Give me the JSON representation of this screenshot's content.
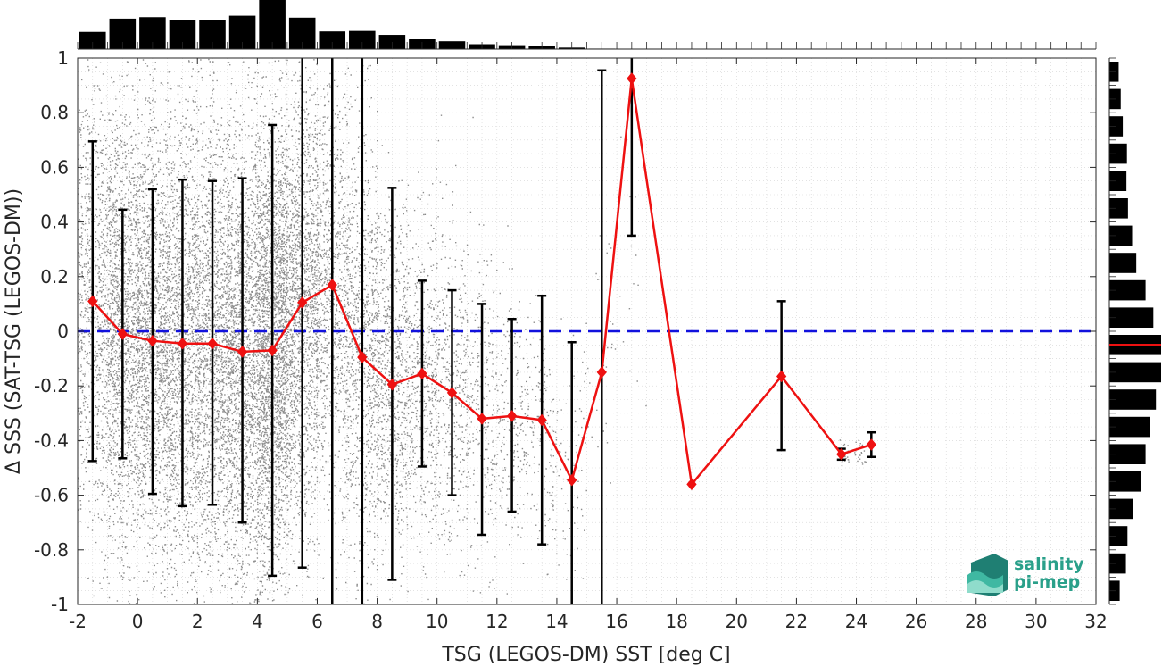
{
  "chart_data": {
    "type": "scatter",
    "xlabel": "TSG (LEGOS-DM) SST [deg C]",
    "ylabel": "Δ SSS (SAT-TSG (LEGOS-DM))",
    "xlim": [
      -2,
      32
    ],
    "ylim": [
      -1,
      1
    ],
    "xticks": [
      -2,
      0,
      2,
      4,
      6,
      8,
      10,
      12,
      14,
      16,
      18,
      20,
      22,
      24,
      26,
      28,
      30,
      32
    ],
    "xtick_labels": [
      "-2",
      "0",
      "2",
      "4",
      "6",
      "8",
      "10",
      "12",
      "14",
      "16",
      "18",
      "20",
      "22",
      "24",
      "26",
      "28",
      "30",
      "32"
    ],
    "yticks": [
      -1,
      -0.8,
      -0.6,
      -0.4,
      -0.2,
      0,
      0.2,
      0.4,
      0.6,
      0.8,
      1
    ],
    "ytick_labels": [
      "-1",
      "-0.8",
      "-0.6",
      "-0.4",
      "-0.2",
      "0",
      "0.2",
      "0.4",
      "0.6",
      "0.8",
      "1"
    ],
    "grid": "dotted",
    "reference_line": {
      "y": 0,
      "color": "#1111dd",
      "style": "dashed"
    },
    "scatter_color": "#8c8c8c",
    "mean_color": "#ee1111",
    "errorbar_color": "#000000",
    "binned_stats": {
      "x": [
        -1.5,
        -0.5,
        0.5,
        1.5,
        2.5,
        3.5,
        4.5,
        5.5,
        6.5,
        7.5,
        8.5,
        9.5,
        10.5,
        11.5,
        12.5,
        13.5,
        14.5,
        15.5,
        16.5,
        18.5,
        21.5,
        23.5,
        24.5
      ],
      "mean": [
        0.11,
        -0.01,
        -0.035,
        -0.045,
        -0.045,
        -0.075,
        -0.07,
        0.105,
        0.17,
        -0.095,
        -0.195,
        -0.155,
        -0.225,
        -0.32,
        -0.31,
        -0.325,
        -0.545,
        -0.15,
        0.925,
        -0.56,
        -0.165,
        -0.45,
        -0.415
      ],
      "lower": [
        -0.475,
        -0.465,
        -0.595,
        -0.64,
        -0.635,
        -0.7,
        -0.895,
        -0.865,
        -1.3,
        -1.3,
        -0.91,
        -0.495,
        -0.6,
        -0.745,
        -0.66,
        -0.78,
        -1.3,
        -1.3,
        0.35,
        null,
        -0.435,
        -0.47,
        -0.46
      ],
      "upper": [
        0.695,
        0.445,
        0.52,
        0.555,
        0.55,
        0.56,
        0.755,
        1.3,
        1.3,
        1.3,
        0.525,
        0.185,
        0.15,
        0.1,
        0.045,
        0.13,
        -0.04,
        0.955,
        1.3,
        null,
        0.11,
        -0.43,
        -0.37
      ]
    },
    "top_histogram": {
      "bin_width": 1,
      "x": [
        -1.5,
        -0.5,
        0.5,
        1.5,
        2.5,
        3.5,
        4.5,
        5.5,
        6.5,
        7.5,
        8.5,
        9.5,
        10.5,
        11.5,
        12.5,
        13.5,
        14.5,
        15.5,
        16.5
      ],
      "relative_counts": [
        0.35,
        0.62,
        0.65,
        0.6,
        0.6,
        0.68,
        1.0,
        0.64,
        0.36,
        0.37,
        0.29,
        0.2,
        0.16,
        0.1,
        0.08,
        0.06,
        0.03,
        0.01,
        0.005
      ]
    },
    "right_histogram": {
      "bin_width": 0.1,
      "y": [
        0.95,
        0.85,
        0.75,
        0.65,
        0.55,
        0.45,
        0.35,
        0.25,
        0.15,
        0.05,
        -0.05,
        -0.15,
        -0.25,
        -0.35,
        -0.45,
        -0.55,
        -0.65,
        -0.75,
        -0.85,
        -0.95
      ],
      "relative_counts": [
        0.18,
        0.22,
        0.26,
        0.34,
        0.33,
        0.36,
        0.44,
        0.52,
        0.7,
        0.85,
        1.0,
        1.0,
        0.9,
        0.78,
        0.7,
        0.62,
        0.45,
        0.35,
        0.32,
        0.2
      ],
      "mean_marker_y": -0.05
    }
  },
  "logo": {
    "line1": "salinity",
    "line2": "pi-mep"
  }
}
